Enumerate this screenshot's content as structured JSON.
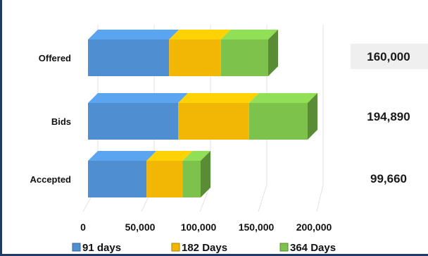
{
  "chart_data": {
    "type": "bar",
    "orientation": "horizontal",
    "stacked": true,
    "categories": [
      "Offered",
      "Bids",
      "Accepted"
    ],
    "series": [
      {
        "name": "91 days",
        "color": "#4f8fd1",
        "values": [
          72000,
          80000,
          52000
        ]
      },
      {
        "name": "182 Days",
        "color": "#f2b705",
        "values": [
          46000,
          63000,
          32000
        ]
      },
      {
        "name": "364 Days",
        "color": "#7dc24b",
        "values": [
          42000,
          52000,
          16000
        ]
      }
    ],
    "totals": [
      "160,000",
      "194,890",
      "99,660"
    ],
    "highlighted_total": "160,000",
    "xticks": [
      "0",
      "50,000",
      "100,000",
      "150,000",
      "200,000"
    ],
    "xlim": [
      0,
      200000
    ],
    "grid": true,
    "legend_position": "bottom",
    "title": "",
    "xlabel": "",
    "ylabel": ""
  }
}
